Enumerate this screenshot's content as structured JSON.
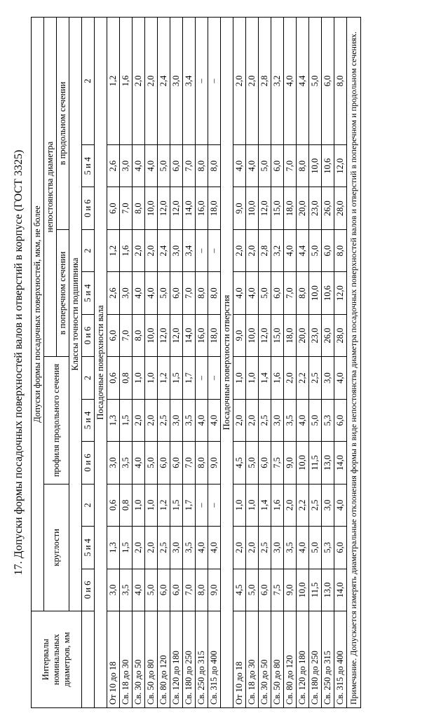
{
  "title": "17. Допуски формы посадочных поверхностей  валов и отверстий в корпусе (ГОСТ 3325)",
  "header": {
    "intervals": "Интервалы номинальных диаметров, мм",
    "tolerances": "Допуски формы посадочных поверхностей, мкм, не более",
    "roundness": "круглости",
    "profile": "профиля продольного сечения",
    "inconstancy": "непостоянства диаметра",
    "transverse": "в поперечном сечении",
    "longitudinal": "в продольном сечении",
    "classes": "Классы точности подшипника",
    "c0": "0 и 6",
    "c5": "5 и 4",
    "c2": "2"
  },
  "section1": "Посадочные поверхности вала",
  "section2": "Посадочные поверхности отверстия",
  "labels": [
    "От 10 до 18",
    "Св. 18 до 30",
    "Св. 30 до 50",
    "Св. 50 до 80",
    "Св. 80 до 120",
    "Св. 120 до 180",
    "Св. 180 до 250",
    "Св. 250 до 315",
    "Св. 315 до 400"
  ],
  "shaft": [
    [
      "3,0",
      "1,3",
      "0,6",
      "3,0",
      "1,3",
      "0,6",
      "6,0",
      "2,6",
      "1,2",
      "6,0",
      "2,6",
      "1,2"
    ],
    [
      "3,5",
      "1,5",
      "0,8",
      "3,5",
      "1,5",
      "0,8",
      "7,0",
      "3,0",
      "1,6",
      "7,0",
      "3,0",
      "1,6"
    ],
    [
      "4,0",
      "2,0",
      "1,0",
      "4,0",
      "2,0",
      "1,0",
      "8,0",
      "4,0",
      "2,0",
      "8,0",
      "4,0",
      "2,0"
    ],
    [
      "5,0",
      "2,0",
      "1,0",
      "5,0",
      "2,0",
      "1,0",
      "10,0",
      "4,0",
      "2,0",
      "10,0",
      "4,0",
      "2,0"
    ],
    [
      "6,0",
      "2,5",
      "1,2",
      "6,0",
      "2,5",
      "1,2",
      "12,0",
      "5,0",
      "2,4",
      "12,0",
      "5,0",
      "2,4"
    ],
    [
      "6,0",
      "3,0",
      "1,5",
      "6,0",
      "3,0",
      "1,5",
      "12,0",
      "6,0",
      "3,0",
      "12,0",
      "6,0",
      "3,0"
    ],
    [
      "7,0",
      "3,5",
      "1,7",
      "7,0",
      "3,5",
      "1,7",
      "14,0",
      "7,0",
      "3,4",
      "14,0",
      "7,0",
      "3,4"
    ],
    [
      "8,0",
      "4,0",
      "–",
      "8,0",
      "4,0",
      "–",
      "16,0",
      "8,0",
      "–",
      "16,0",
      "8,0",
      "–"
    ],
    [
      "9,0",
      "4,0",
      "–",
      "9,0",
      "4,0",
      "–",
      "18,0",
      "8,0",
      "–",
      "18,0",
      "8,0",
      "–"
    ]
  ],
  "hole": [
    [
      "4,5",
      "2,0",
      "1,0",
      "4,5",
      "2,0",
      "1,0",
      "9,0",
      "4,0",
      "2,0",
      "9,0",
      "4,0",
      "2,0"
    ],
    [
      "5,0",
      "2,0",
      "1,0",
      "5,0",
      "2,0",
      "1,0",
      "10,0",
      "4,0",
      "2,0",
      "10,0",
      "4,0",
      "2,0"
    ],
    [
      "6,0",
      "2,5",
      "1,4",
      "6,0",
      "2,5",
      "1,4",
      "12,0",
      "5,0",
      "2,8",
      "12,0",
      "5,0",
      "2,8"
    ],
    [
      "7,5",
      "3,0",
      "1,6",
      "7,5",
      "3,0",
      "1,6",
      "15,0",
      "6,0",
      "3,2",
      "15,0",
      "6,0",
      "3,2"
    ],
    [
      "9,0",
      "3,5",
      "2,0",
      "9,0",
      "3,5",
      "2,0",
      "18,0",
      "7,0",
      "4,0",
      "18,0",
      "7,0",
      "4,0"
    ],
    [
      "10,0",
      "4,0",
      "2,2",
      "10,0",
      "4,0",
      "2,2",
      "20,0",
      "8,0",
      "4,4",
      "20,0",
      "8,0",
      "4,4"
    ],
    [
      "11,5",
      "5,0",
      "2,5",
      "11,5",
      "5,0",
      "2,5",
      "23,0",
      "10,0",
      "5,0",
      "23,0",
      "10,0",
      "5,0"
    ],
    [
      "13,0",
      "5,3",
      "3,0",
      "13,0",
      "5,3",
      "3,0",
      "26,0",
      "10,6",
      "6,0",
      "26,0",
      "10,6",
      "6,0"
    ],
    [
      "14,0",
      "6,0",
      "4,0",
      "14,0",
      "6,0",
      "4,0",
      "28,0",
      "12,0",
      "8,0",
      "28,0",
      "12,0",
      "8,0"
    ]
  ],
  "note": "Примечание. Допускается измерять диаметральные отклонения формы в виде непостоянства диаметра посадочных поверхностей валов и отверстий в поперечном и продольном сечениях."
}
